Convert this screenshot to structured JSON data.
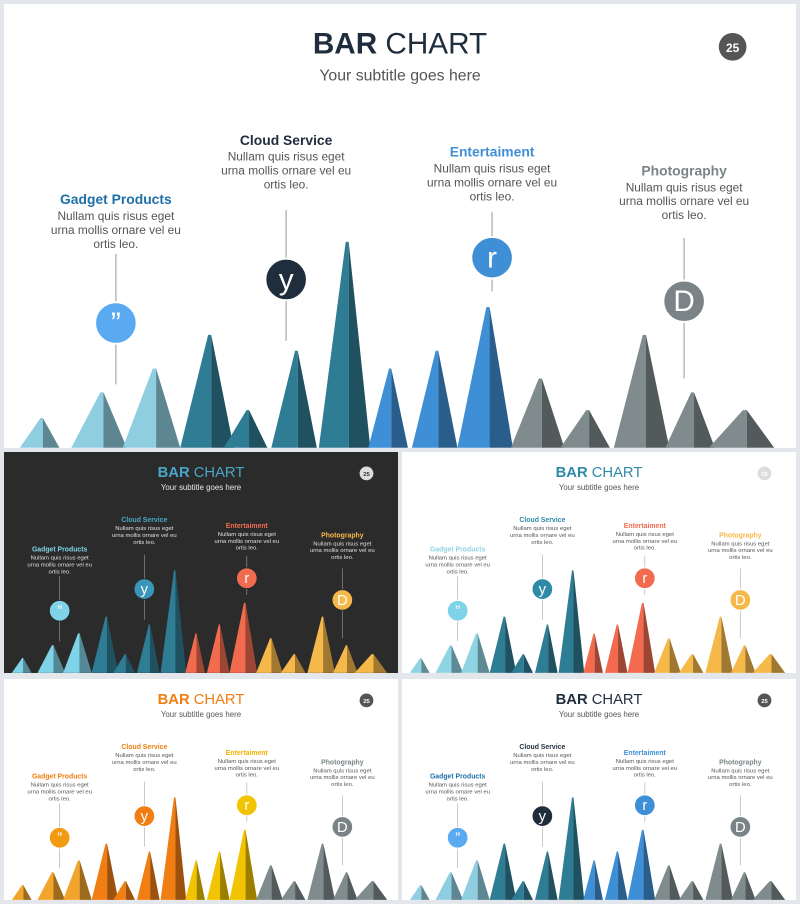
{
  "title_bold": "BAR",
  "title_rest": " CHART",
  "subtitle": "Your subtitle goes here",
  "page_number": "25",
  "labels": [
    {
      "title": "Gadget Products",
      "body": [
        "Nullam quis risus eget",
        "urna mollis ornare vel eu",
        "ortis leo."
      ],
      "icon": "”"
    },
    {
      "title": "Cloud Service",
      "body": [
        "Nullam quis risus eget",
        "urna mollis ornare vel eu",
        "ortis leo."
      ],
      "icon": "y"
    },
    {
      "title": "Entertaiment",
      "body": [
        "Nullam quis risus eget",
        "urna mollis ornare vel eu",
        "ortis leo."
      ],
      "icon": "r"
    },
    {
      "title": "Photography",
      "body": [
        "Nullam quis risus eget",
        "urna mollis ornare vel eu",
        "ortis leo."
      ],
      "icon": "D"
    }
  ],
  "icons": [
    "quote-icon",
    "twitter-icon",
    "rss-icon",
    "dribbble-icon"
  ],
  "slides": [
    {
      "variant": "main",
      "background": "#ffffff",
      "title_color": "#1f2d3d",
      "subtitle_color": "#555555",
      "text_color": "#555555",
      "badge_color": "#555555",
      "label_colors": [
        "#1e6fa8",
        "#1f2d3d",
        "#3f8fd6",
        "#7a8487"
      ],
      "circle_colors": [
        "#5aaaf2",
        "#1f2d3d",
        "#3f8fd6",
        "#7a8487"
      ],
      "group_colors": [
        "#8fcde0",
        "#2f7d95",
        "#3f8fd6",
        "#7f8b8c"
      ]
    },
    {
      "variant": "dark",
      "background": "#2b2b2b",
      "title_color": "#4aa6c8",
      "subtitle_color": "#e8e8e8",
      "text_color": "#e0e0e0",
      "badge_color": "#dddddd",
      "label_colors": [
        "#7fd3e8",
        "#4aa6c8",
        "#f26b4f",
        "#f7b84a"
      ],
      "circle_colors": [
        "#7fd3e8",
        "#3a96b9",
        "#f26b4f",
        "#f7b84a"
      ],
      "group_colors": [
        "#7fd3e8",
        "#2f7d95",
        "#f26b4f",
        "#f7b84a"
      ]
    },
    {
      "variant": "warm",
      "background": "#ffffff",
      "title_color": "#2f8aa8",
      "subtitle_color": "#555555",
      "text_color": "#555555",
      "badge_color": "#dddddd",
      "label_colors": [
        "#8fd4e3",
        "#2f8aa8",
        "#f26b4f",
        "#f7b84a"
      ],
      "circle_colors": [
        "#7fd3e8",
        "#2f8aa8",
        "#f26b4f",
        "#f7b84a"
      ],
      "group_colors": [
        "#8fd4e3",
        "#2f7d95",
        "#f26b4f",
        "#f7b84a"
      ]
    },
    {
      "variant": "orange",
      "background": "#ffffff",
      "title_color": "#f07e12",
      "subtitle_color": "#555555",
      "text_color": "#555555",
      "badge_color": "#555555",
      "label_colors": [
        "#f07e12",
        "#f07e12",
        "#f2b400",
        "#7a8487"
      ],
      "circle_colors": [
        "#f29a12",
        "#f07e12",
        "#f2c300",
        "#7a8487"
      ],
      "group_colors": [
        "#f2a52a",
        "#f07e12",
        "#f2c300",
        "#7f8b8c"
      ]
    },
    {
      "variant": "classic",
      "background": "#ffffff",
      "title_color": "#1f2d3d",
      "subtitle_color": "#555555",
      "text_color": "#555555",
      "badge_color": "#555555",
      "label_colors": [
        "#1e6fa8",
        "#1f2d3d",
        "#3f8fd6",
        "#7a8487"
      ],
      "circle_colors": [
        "#5aaaf2",
        "#1f2d3d",
        "#3f8fd6",
        "#7a8487"
      ],
      "group_colors": [
        "#8fcde0",
        "#2f7d95",
        "#3f8fd6",
        "#7f8b8c"
      ]
    }
  ]
}
